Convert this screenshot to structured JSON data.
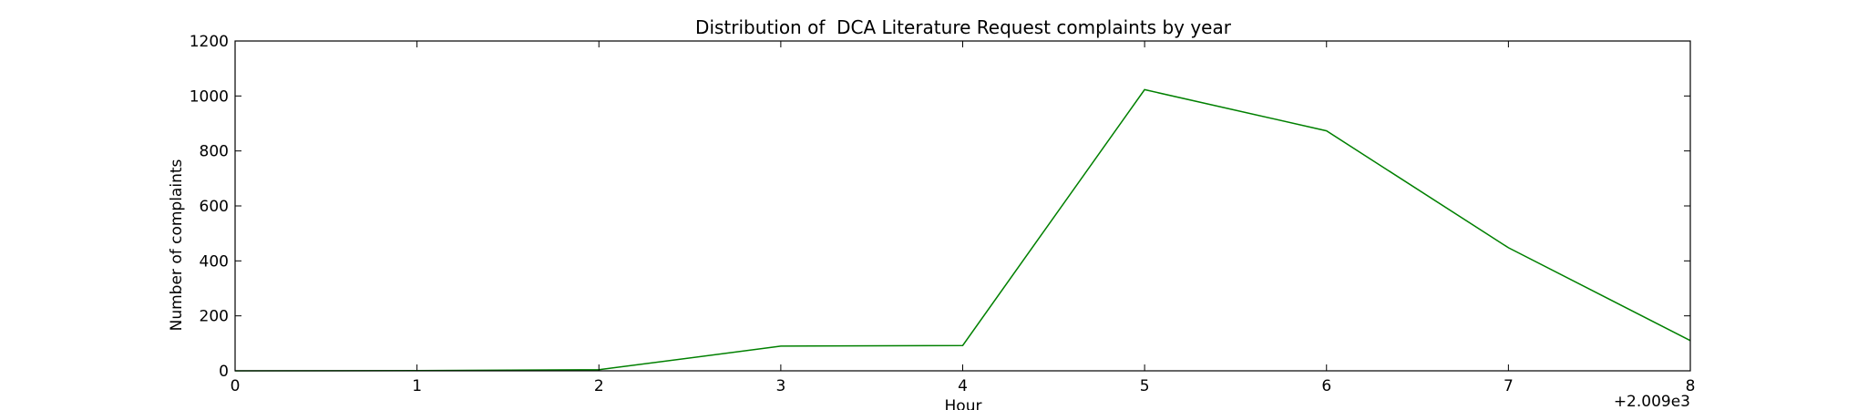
{
  "chart_data": {
    "type": "line",
    "title": "Distribution of  DCA Literature Request complaints by year",
    "xlabel": "Hour",
    "ylabel": "Number of complaints",
    "x_offset_label": "+2.009e3",
    "x_tick_labels": [
      "0",
      "1",
      "2",
      "3",
      "4",
      "5",
      "6",
      "7",
      "8"
    ],
    "y_tick_labels": [
      "0",
      "200",
      "400",
      "600",
      "800",
      "1000",
      "1200"
    ],
    "xlim": [
      0,
      8
    ],
    "ylim": [
      0,
      1200
    ],
    "grid": false,
    "series": [
      {
        "color": "#008000",
        "x": [
          0,
          1,
          2,
          3,
          4,
          5,
          6,
          7,
          8
        ],
        "values": [
          0,
          1,
          4,
          90,
          92,
          1023,
          873,
          448,
          110
        ]
      }
    ]
  }
}
